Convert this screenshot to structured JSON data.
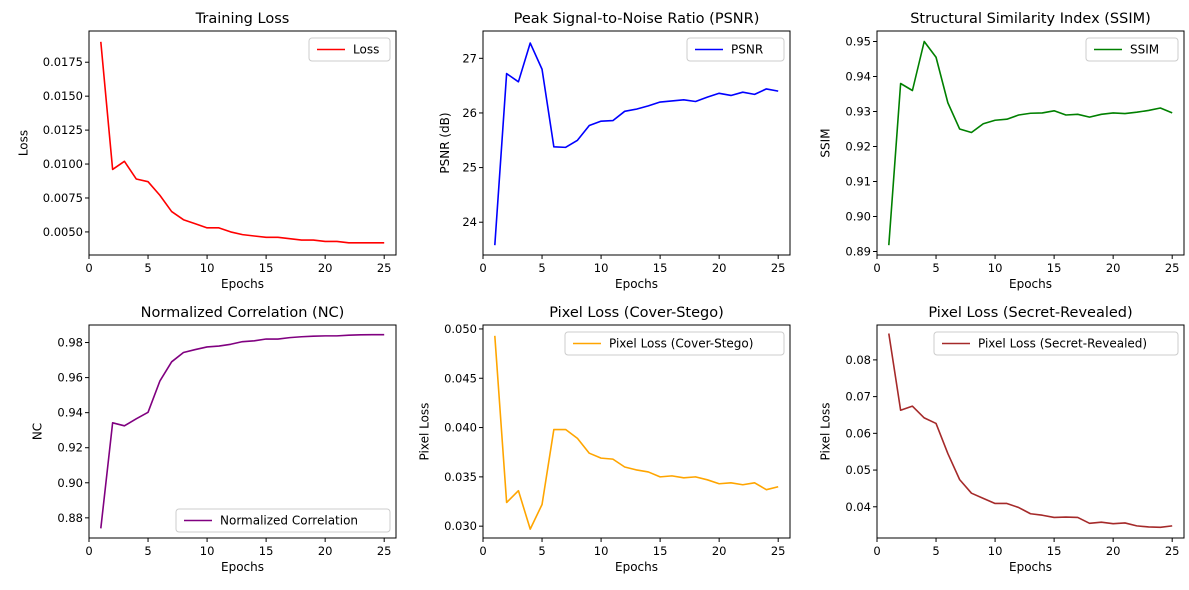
{
  "chart_data": [
    {
      "type": "line",
      "title": "Training Loss",
      "xlabel": "Epochs",
      "ylabel": "Loss",
      "xlim": [
        0,
        26
      ],
      "ylim": [
        0.0033,
        0.0198
      ],
      "xticks": [
        0,
        5,
        10,
        15,
        20,
        25
      ],
      "yticks": [
        0.005,
        0.0075,
        0.01,
        0.0125,
        0.015,
        0.0175
      ],
      "ytick_labels": [
        "0.0050",
        "0.0075",
        "0.0100",
        "0.0125",
        "0.0150",
        "0.0175"
      ],
      "legend_position": "top-right",
      "grid": false,
      "x": [
        1,
        2,
        3,
        4,
        5,
        6,
        7,
        8,
        9,
        10,
        11,
        12,
        13,
        14,
        15,
        16,
        17,
        18,
        19,
        20,
        21,
        22,
        23,
        24,
        25
      ],
      "series": [
        {
          "name": "Loss",
          "color": "#ff0000",
          "values": [
            0.019,
            0.0096,
            0.0102,
            0.0089,
            0.0087,
            0.0077,
            0.0065,
            0.0059,
            0.0056,
            0.0053,
            0.0053,
            0.005,
            0.0048,
            0.0047,
            0.0046,
            0.0046,
            0.0045,
            0.0044,
            0.0044,
            0.0043,
            0.0043,
            0.0042,
            0.0042,
            0.0042,
            0.0042
          ]
        }
      ]
    },
    {
      "type": "line",
      "title": "Peak Signal-to-Noise Ratio (PSNR)",
      "xlabel": "Epochs",
      "ylabel": "PSNR (dB)",
      "xlim": [
        0,
        26
      ],
      "ylim": [
        23.4,
        27.5
      ],
      "xticks": [
        0,
        5,
        10,
        15,
        20,
        25
      ],
      "yticks": [
        24,
        25,
        26,
        27
      ],
      "ytick_labels": [
        "24",
        "25",
        "26",
        "27"
      ],
      "legend_position": "top-right",
      "grid": false,
      "x": [
        1,
        2,
        3,
        4,
        5,
        6,
        7,
        8,
        9,
        10,
        11,
        12,
        13,
        14,
        15,
        16,
        17,
        18,
        19,
        20,
        21,
        22,
        23,
        24,
        25
      ],
      "series": [
        {
          "name": "PSNR",
          "color": "#0000ff",
          "values": [
            23.58,
            26.72,
            26.57,
            27.28,
            26.8,
            25.38,
            25.37,
            25.5,
            25.77,
            25.85,
            25.86,
            26.03,
            26.07,
            26.13,
            26.2,
            26.22,
            26.24,
            26.21,
            26.29,
            26.36,
            26.32,
            26.38,
            26.34,
            26.44,
            26.4
          ]
        }
      ]
    },
    {
      "type": "line",
      "title": "Structural Similarity Index (SSIM)",
      "xlabel": "Epochs",
      "ylabel": "SSIM",
      "xlim": [
        0,
        26
      ],
      "ylim": [
        0.889,
        0.953
      ],
      "xticks": [
        0,
        5,
        10,
        15,
        20,
        25
      ],
      "yticks": [
        0.89,
        0.9,
        0.91,
        0.92,
        0.93,
        0.94,
        0.95
      ],
      "ytick_labels": [
        "0.89",
        "0.90",
        "0.91",
        "0.92",
        "0.93",
        "0.94",
        "0.95"
      ],
      "legend_position": "top-right",
      "grid": false,
      "x": [
        1,
        2,
        3,
        4,
        5,
        6,
        7,
        8,
        9,
        10,
        11,
        12,
        13,
        14,
        15,
        16,
        17,
        18,
        19,
        20,
        21,
        22,
        23,
        24,
        25
      ],
      "series": [
        {
          "name": "SSIM",
          "color": "#008000",
          "values": [
            0.8918,
            0.938,
            0.936,
            0.95,
            0.9455,
            0.9325,
            0.925,
            0.924,
            0.9265,
            0.9275,
            0.9278,
            0.929,
            0.9295,
            0.9296,
            0.9302,
            0.929,
            0.9292,
            0.9284,
            0.9292,
            0.9296,
            0.9294,
            0.9298,
            0.9303,
            0.931,
            0.9296
          ]
        }
      ]
    },
    {
      "type": "line",
      "title": "Normalized Correlation (NC)",
      "xlabel": "Epochs",
      "ylabel": "NC",
      "xlim": [
        0,
        26
      ],
      "ylim": [
        0.8685,
        0.99
      ],
      "xticks": [
        0,
        5,
        10,
        15,
        20,
        25
      ],
      "yticks": [
        0.88,
        0.9,
        0.92,
        0.94,
        0.96,
        0.98
      ],
      "ytick_labels": [
        "0.88",
        "0.90",
        "0.92",
        "0.94",
        "0.96",
        "0.98"
      ],
      "legend_position": "lower-right",
      "grid": false,
      "x": [
        1,
        2,
        3,
        4,
        5,
        6,
        7,
        8,
        9,
        10,
        11,
        12,
        13,
        14,
        15,
        16,
        17,
        18,
        19,
        20,
        21,
        22,
        23,
        24,
        25
      ],
      "series": [
        {
          "name": "Normalized Correlation",
          "color": "#800080",
          "values": [
            0.874,
            0.9342,
            0.9325,
            0.9365,
            0.9402,
            0.958,
            0.969,
            0.9743,
            0.976,
            0.9775,
            0.978,
            0.979,
            0.9805,
            0.981,
            0.982,
            0.982,
            0.9828,
            0.9833,
            0.9836,
            0.9838,
            0.9838,
            0.9842,
            0.9844,
            0.9845,
            0.9845
          ]
        }
      ]
    },
    {
      "type": "line",
      "title": "Pixel Loss (Cover-Stego)",
      "xlabel": "Epochs",
      "ylabel": "Pixel Loss",
      "xlim": [
        0,
        26
      ],
      "ylim": [
        0.0288,
        0.0504
      ],
      "xticks": [
        0,
        5,
        10,
        15,
        20,
        25
      ],
      "yticks": [
        0.03,
        0.035,
        0.04,
        0.045,
        0.05
      ],
      "ytick_labels": [
        "0.030",
        "0.035",
        "0.040",
        "0.045",
        "0.050"
      ],
      "legend_position": "top-right",
      "grid": false,
      "x": [
        1,
        2,
        3,
        4,
        5,
        6,
        7,
        8,
        9,
        10,
        11,
        12,
        13,
        14,
        15,
        16,
        17,
        18,
        19,
        20,
        21,
        22,
        23,
        24,
        25
      ],
      "series": [
        {
          "name": "Pixel Loss (Cover-Stego)",
          "color": "#ffa500",
          "values": [
            0.0493,
            0.0324,
            0.0336,
            0.0297,
            0.0322,
            0.0398,
            0.0398,
            0.0389,
            0.0374,
            0.0369,
            0.0368,
            0.036,
            0.0357,
            0.0355,
            0.035,
            0.0351,
            0.0349,
            0.035,
            0.0347,
            0.0343,
            0.0344,
            0.0342,
            0.0344,
            0.0337,
            0.034
          ]
        }
      ]
    },
    {
      "type": "line",
      "title": "Pixel Loss (Secret-Revealed)",
      "xlabel": "Epochs",
      "ylabel": "Pixel Loss",
      "xlim": [
        0,
        26
      ],
      "ylim": [
        0.0315,
        0.0895
      ],
      "xticks": [
        0,
        5,
        10,
        15,
        20,
        25
      ],
      "yticks": [
        0.04,
        0.05,
        0.06,
        0.07,
        0.08
      ],
      "ytick_labels": [
        "0.04",
        "0.05",
        "0.06",
        "0.07",
        "0.08"
      ],
      "legend_position": "top-right",
      "grid": false,
      "x": [
        1,
        2,
        3,
        4,
        5,
        6,
        7,
        8,
        9,
        10,
        11,
        12,
        13,
        14,
        15,
        16,
        17,
        18,
        19,
        20,
        21,
        22,
        23,
        24,
        25
      ],
      "series": [
        {
          "name": "Pixel Loss (Secret-Revealed)",
          "color": "#a52a2a",
          "values": [
            0.0872,
            0.0663,
            0.0674,
            0.0642,
            0.0627,
            0.0545,
            0.0474,
            0.0437,
            0.0423,
            0.0409,
            0.0409,
            0.0398,
            0.0381,
            0.0377,
            0.0371,
            0.0372,
            0.0371,
            0.0355,
            0.0358,
            0.0354,
            0.0356,
            0.0348,
            0.0345,
            0.0344,
            0.0348
          ]
        }
      ]
    }
  ]
}
